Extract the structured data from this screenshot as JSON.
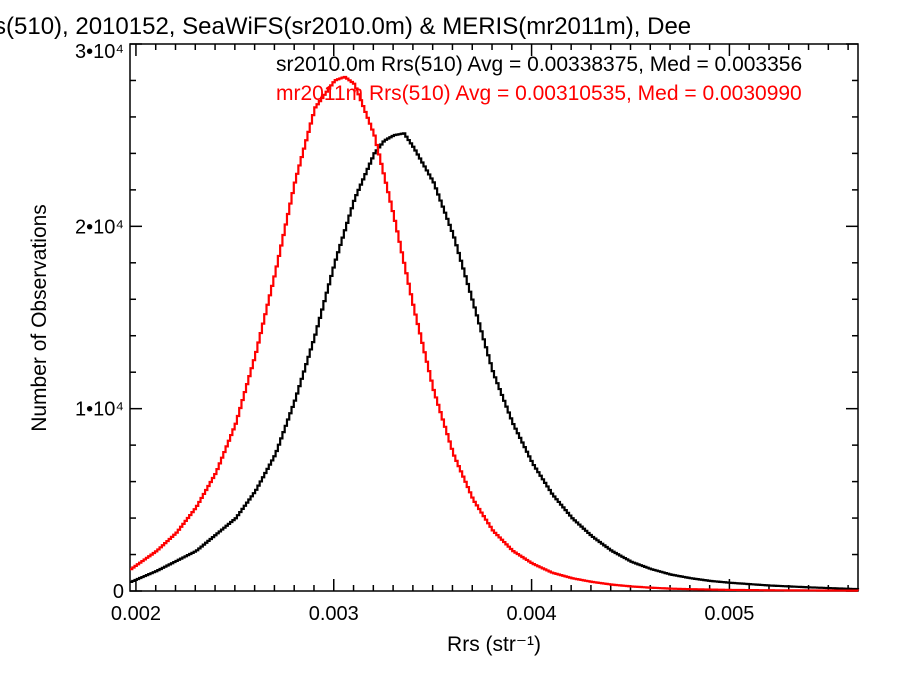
{
  "chart_data": {
    "type": "line",
    "title": "s(510), 2010152, SeaWiFS(sr2010.0m) & MERIS(mr2011m), Dee",
    "xlabel": "Rrs (str⁻¹)",
    "ylabel": "Number of Observations",
    "xlim": [
      0.00197,
      0.00565
    ],
    "ylim": [
      0,
      30000
    ],
    "x_ticks": [
      {
        "value": 0.002,
        "label": "0.002"
      },
      {
        "value": 0.003,
        "label": "0.003"
      },
      {
        "value": 0.004,
        "label": "0.004"
      },
      {
        "value": 0.005,
        "label": "0.005"
      }
    ],
    "y_ticks": [
      {
        "value": 0,
        "label": "0"
      },
      {
        "value": 10000,
        "label": "1•10⁴"
      },
      {
        "value": 20000,
        "label": "2•10⁴"
      },
      {
        "value": 30000,
        "label": "3•10⁴"
      }
    ],
    "grid": false,
    "legend_position": "top-right",
    "series": [
      {
        "name": "sr2010.0m Rrs(510) Avg = 0.00338375, Med = 0.003356",
        "color": "#000000",
        "style": "step",
        "x": [
          0.00197,
          0.0021,
          0.0023,
          0.0025,
          0.0026,
          0.0027,
          0.0028,
          0.0029,
          0.003,
          0.0031,
          0.0032,
          0.00325,
          0.0033,
          0.00335,
          0.0034,
          0.0035,
          0.0036,
          0.0037,
          0.0038,
          0.0039,
          0.004,
          0.0041,
          0.0042,
          0.0043,
          0.0044,
          0.0045,
          0.0046,
          0.0047,
          0.0048,
          0.0049,
          0.005,
          0.0052,
          0.0054,
          0.00565
        ],
        "y": [
          500,
          1100,
          2200,
          4000,
          5500,
          7500,
          10500,
          14000,
          18000,
          21500,
          24000,
          24700,
          25000,
          25100,
          24300,
          22400,
          19500,
          15800,
          12000,
          9200,
          7000,
          5300,
          4000,
          3000,
          2200,
          1600,
          1200,
          900,
          700,
          550,
          450,
          300,
          200,
          100
        ]
      },
      {
        "name": "mr2011m Rrs(510) Avg = 0.00310535, Med = 0.0030990",
        "color": "#ff0000",
        "style": "step",
        "x": [
          0.00197,
          0.0021,
          0.0022,
          0.0023,
          0.0024,
          0.0025,
          0.0026,
          0.0027,
          0.0028,
          0.0029,
          0.003,
          0.00305,
          0.0031,
          0.0032,
          0.0033,
          0.0034,
          0.0035,
          0.0036,
          0.0037,
          0.0038,
          0.0039,
          0.004,
          0.0041,
          0.0042,
          0.0043,
          0.0044,
          0.0045,
          0.0046,
          0.0047,
          0.0048,
          0.005,
          0.0052,
          0.00565
        ],
        "y": [
          1200,
          2200,
          3200,
          4600,
          6500,
          9200,
          13000,
          17500,
          22500,
          26500,
          28000,
          28200,
          27800,
          25000,
          20500,
          15500,
          11000,
          7500,
          5000,
          3300,
          2200,
          1500,
          1000,
          700,
          500,
          350,
          250,
          180,
          130,
          100,
          60,
          40,
          20
        ]
      }
    ]
  }
}
